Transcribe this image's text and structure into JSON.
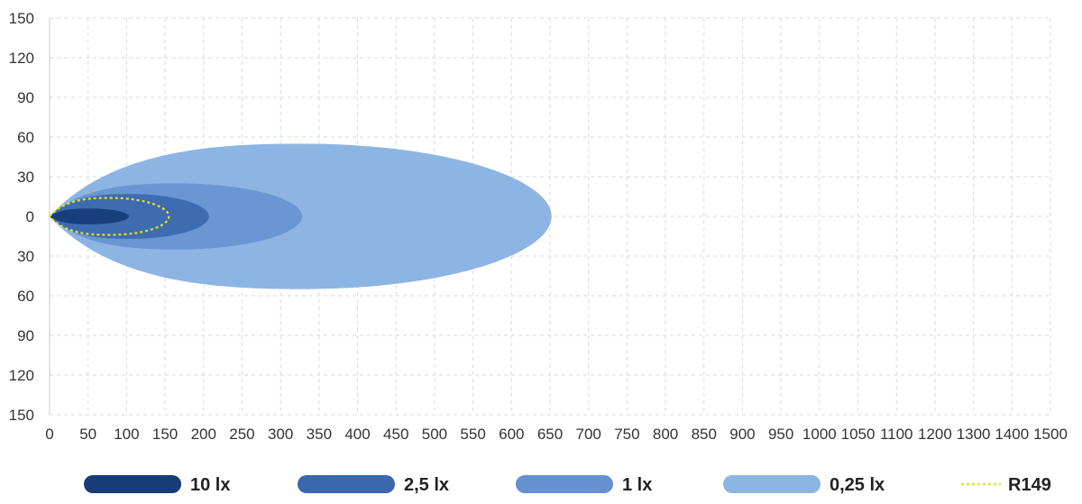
{
  "chart_data": {
    "type": "area",
    "title": "",
    "xlabel": "",
    "ylabel": "",
    "xlim": [
      0,
      1500
    ],
    "ylim": [
      -150,
      150
    ],
    "grid": true,
    "legend_position": "bottom",
    "x_tick_labels": [
      "0",
      "50",
      "100",
      "150",
      "200",
      "250",
      "300",
      "350",
      "400",
      "450",
      "500",
      "550",
      "600",
      "650",
      "700",
      "750",
      "800",
      "850",
      "900",
      "950",
      "1000",
      "1050",
      "1100",
      "1200",
      "1300",
      "1400",
      "1500"
    ],
    "y_tick_labels": [
      "150",
      "120",
      "90",
      "60",
      "30",
      "0",
      "30",
      "60",
      "90",
      "120",
      "150"
    ],
    "y_tick_values": [
      150,
      120,
      90,
      60,
      30,
      0,
      -30,
      -60,
      -90,
      -120,
      -150
    ],
    "series": [
      {
        "name": "0,25 lx",
        "reach": 652,
        "half_width": 55,
        "color": "#8db5e3",
        "swatch": "#8bb6e4"
      },
      {
        "name": "1 lx",
        "reach": 328,
        "half_width": 25,
        "color": "#6a96d3",
        "swatch": "#6591d1"
      },
      {
        "name": "2,5 lx",
        "reach": 207,
        "half_width": 17,
        "color": "#3d6cb0",
        "swatch": "#3a67ad"
      },
      {
        "name": "10 lx",
        "reach": 103,
        "half_width": 6,
        "color": "#163f7b",
        "swatch": "#163d78"
      },
      {
        "name": "R149",
        "reach": 155,
        "half_width": 14,
        "color": "#e6de2c",
        "dashed": true
      }
    ]
  }
}
